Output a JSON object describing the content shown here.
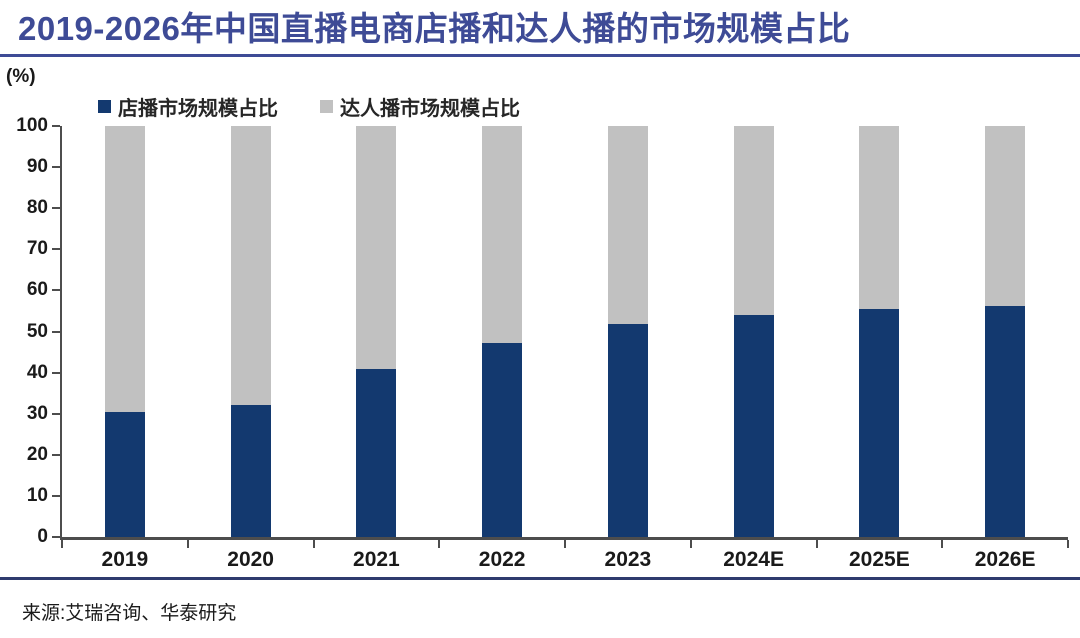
{
  "title": "2019-2026年中国直播电商店播和达人播的市场规模占比",
  "source": "来源:艾瑞咨询、华泰研究",
  "colors": {
    "title_accent": "#3E4B96",
    "store_bar": "#13396F",
    "influencer_bar": "#C1C1C1",
    "axis": "#4D4D4D",
    "footer_rule": "#2E3B6E"
  },
  "legend": [
    {
      "label": "店播市场规模占比",
      "color": "#13396F"
    },
    {
      "label": "达人播市场规模占比",
      "color": "#C1C1C1"
    }
  ],
  "chart_data": {
    "type": "bar",
    "stacked": true,
    "title": "2019-2026年中国直播电商店播和达人播的市场规模占比",
    "xlabel": "",
    "ylabel": "(%)",
    "ylim": [
      0,
      100
    ],
    "y_ticks": [
      0,
      10,
      20,
      30,
      40,
      50,
      60,
      70,
      80,
      90,
      100
    ],
    "grid": false,
    "legend_position": "top",
    "categories": [
      "2019",
      "2020",
      "2021",
      "2022",
      "2023",
      "2024E",
      "2025E",
      "2026E"
    ],
    "series": [
      {
        "name": "店播市场规模占比",
        "color": "#13396F",
        "values": [
          30.4,
          32.1,
          40.8,
          47.1,
          51.8,
          54.0,
          55.5,
          56.1
        ]
      },
      {
        "name": "达人播市场规模占比",
        "color": "#C1C1C1",
        "values": [
          69.6,
          67.9,
          59.2,
          52.9,
          48.2,
          46.0,
          44.5,
          43.9
        ]
      }
    ]
  }
}
